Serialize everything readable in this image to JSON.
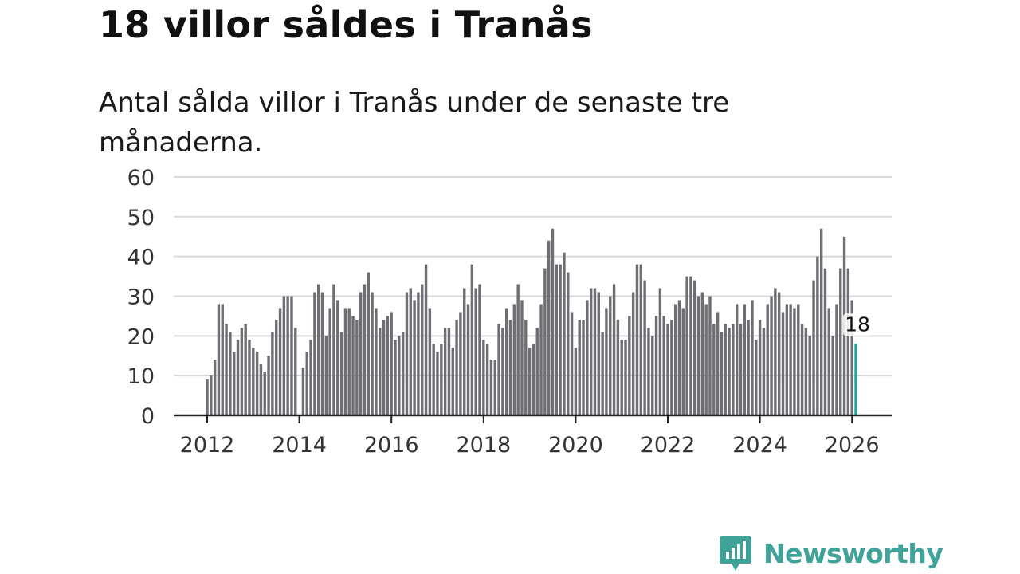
{
  "header": {
    "title": "18 villor såldes i Tranås",
    "subtitle": "Antal sålda villor i Tranås under de senaste tre månaderna."
  },
  "colors": {
    "bar": "#6e6e74",
    "highlight": "#1fa39a",
    "grid": "#d9d9d9",
    "axis": "#222222",
    "brand": "#3fa39a"
  },
  "chart_data": {
    "type": "bar",
    "title": "18 villor såldes i Tranås",
    "subtitle": "Antal sålda villor i Tranås under de senaste tre månaderna.",
    "xlabel": "",
    "ylabel": "",
    "ylim": [
      0,
      60
    ],
    "yticks": [
      0,
      10,
      20,
      30,
      40,
      50,
      60
    ],
    "xticks": [
      "2012",
      "2014",
      "2016",
      "2018",
      "2020",
      "2022",
      "2024",
      "2026"
    ],
    "x_start": "2012-01",
    "interval": "month",
    "grid": true,
    "legend": "none",
    "series": [
      {
        "name": "Antal sålda villor",
        "values": [
          9,
          10,
          14,
          28,
          28,
          23,
          21,
          16,
          19,
          22,
          23,
          19,
          17,
          16,
          13,
          11,
          15,
          21,
          24,
          27,
          30,
          30,
          30,
          22,
          null,
          12,
          16,
          19,
          31,
          33,
          31,
          20,
          27,
          33,
          29,
          21,
          27,
          27,
          25,
          24,
          31,
          33,
          36,
          31,
          27,
          22,
          24,
          25,
          26,
          19,
          20,
          21,
          31,
          32,
          29,
          31,
          33,
          38,
          27,
          18,
          16,
          18,
          22,
          22,
          17,
          24,
          26,
          32,
          28,
          38,
          32,
          33,
          19,
          18,
          14,
          14,
          23,
          22,
          27,
          24,
          28,
          33,
          29,
          24,
          17,
          18,
          22,
          28,
          37,
          44,
          47,
          38,
          38,
          41,
          36,
          26,
          17,
          24,
          24,
          29,
          32,
          32,
          31,
          21,
          27,
          30,
          33,
          24,
          19,
          19,
          25,
          31,
          38,
          38,
          34,
          22,
          20,
          25,
          32,
          25,
          23,
          24,
          28,
          29,
          27,
          35,
          35,
          34,
          30,
          31,
          28,
          30,
          23,
          26,
          21,
          23,
          22,
          23,
          28,
          23,
          28,
          24,
          29,
          19,
          24,
          22,
          28,
          30,
          32,
          31,
          26,
          28,
          28,
          27,
          28,
          23,
          22,
          20,
          34,
          40,
          47,
          37,
          27,
          20,
          28,
          37,
          45,
          37,
          29,
          18
        ]
      }
    ],
    "highlight": {
      "index": 169,
      "label": "18"
    }
  },
  "logo": {
    "text": "Newsworthy"
  }
}
